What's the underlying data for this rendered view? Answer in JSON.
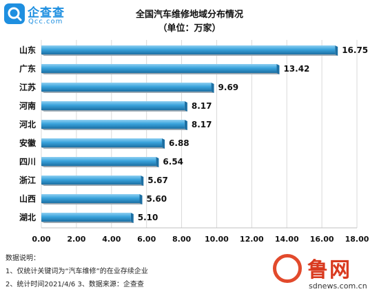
{
  "logo": {
    "name": "企查查",
    "domain": "Qcc.com",
    "icon": "qcc-logo-icon",
    "color": "#1e8fe0"
  },
  "watermark": {
    "name": "鲁网",
    "url": "sdnews.com.cn",
    "icon": "sdnews-logo-icon",
    "color": "#d93a1f"
  },
  "notes": {
    "heading": "数据说明：",
    "line1": "1、仅统计关键词为“汽车维修”的在业存续企业",
    "line2": "2、统计时间2021/4/6   3、数据来源：企查查"
  },
  "chart_data": {
    "type": "bar",
    "orientation": "horizontal",
    "title": "全国汽车维修地域分布情况",
    "subtitle": "（单位：万家）",
    "categories": [
      "山东",
      "广东",
      "江苏",
      "河南",
      "河北",
      "安徽",
      "四川",
      "浙江",
      "山西",
      "湖北"
    ],
    "values": [
      16.75,
      13.42,
      9.69,
      8.17,
      8.17,
      6.88,
      6.54,
      5.67,
      5.6,
      5.1
    ],
    "value_labels": [
      "16.75",
      "13.42",
      "9.69",
      "8.17",
      "8.17",
      "6.88",
      "6.54",
      "5.67",
      "5.60",
      "5.10"
    ],
    "xlim": [
      0,
      18
    ],
    "xticks": [
      "0.00",
      "2.00",
      "4.00",
      "6.00",
      "8.00",
      "10.00",
      "12.00",
      "14.00",
      "16.00",
      "18.00"
    ],
    "grid": true,
    "bar_color": "#3aa3dc",
    "bar_shadow_color": "#1c6fa3"
  }
}
